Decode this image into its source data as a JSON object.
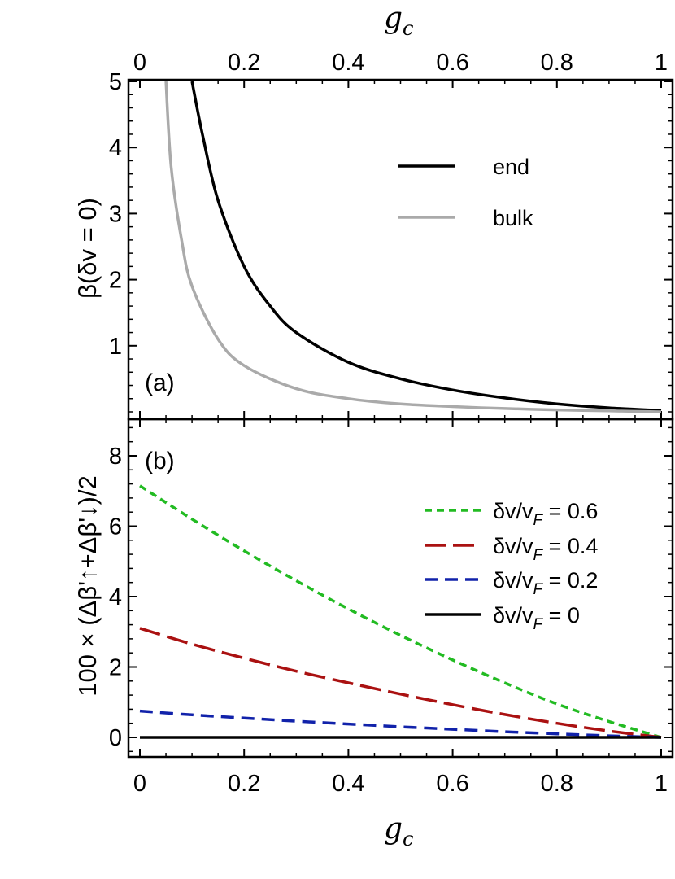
{
  "chart_data": [
    {
      "panel": "(a)",
      "type": "line",
      "xlabel_top": {
        "main": "g",
        "sub": "c"
      },
      "ylabel": "β(δv = 0)",
      "xlim": [
        0,
        1
      ],
      "ylim": [
        0,
        5
      ],
      "xticks": [
        "0",
        "0.2",
        "0.4",
        "0.6",
        "0.8",
        "1"
      ],
      "yticks": [
        "1",
        "2",
        "3",
        "4",
        "5"
      ],
      "legend_position": "top-right",
      "series": [
        {
          "name": "end",
          "color": "#000000",
          "dash": "solid",
          "x": [
            0.1,
            0.12,
            0.15,
            0.2,
            0.25,
            0.3,
            0.4,
            0.5,
            0.6,
            0.7,
            0.8,
            0.9,
            1.0
          ],
          "y": [
            5.0,
            4.2,
            3.2,
            2.2,
            1.6,
            1.2,
            0.75,
            0.5,
            0.33,
            0.21,
            0.12,
            0.06,
            0.02
          ]
        },
        {
          "name": "bulk",
          "color": "#aaaaaa",
          "dash": "solid",
          "x": [
            0.05,
            0.06,
            0.08,
            0.1,
            0.15,
            0.2,
            0.3,
            0.4,
            0.5,
            0.6,
            0.7,
            0.8,
            0.9,
            1.0
          ],
          "y": [
            5.0,
            3.7,
            2.6,
            1.9,
            1.1,
            0.7,
            0.35,
            0.2,
            0.12,
            0.08,
            0.05,
            0.03,
            0.015,
            0.0
          ]
        }
      ]
    },
    {
      "panel": "(b)",
      "type": "line",
      "xlabel": {
        "main": "g",
        "sub": "c"
      },
      "ylabel": "100 × (Δβ'↑+Δβ'↓)/2",
      "xlim": [
        0,
        1
      ],
      "ylim": [
        -0.5,
        9
      ],
      "xticks": [
        "0",
        "0.2",
        "0.4",
        "0.6",
        "0.8",
        "1"
      ],
      "yticks": [
        "0",
        "2",
        "4",
        "6",
        "8"
      ],
      "legend_position": "top-right",
      "series": [
        {
          "name": "δv/vF = 0.6",
          "label_main": "δv/v",
          "label_sub": "F",
          "label_value": " = 0.6",
          "color": "#22bb22",
          "dash": "short-dash",
          "x": [
            0,
            0.1,
            0.2,
            0.3,
            0.4,
            0.5,
            0.6,
            0.7,
            0.8,
            0.9,
            1.0
          ],
          "y": [
            7.15,
            6.2,
            5.3,
            4.45,
            3.65,
            2.9,
            2.2,
            1.55,
            0.95,
            0.45,
            0.0
          ]
        },
        {
          "name": "δv/vF = 0.4",
          "label_main": "δv/v",
          "label_sub": "F",
          "label_value": " = 0.4",
          "color": "#aa1111",
          "dash": "long-dash",
          "x": [
            0,
            0.1,
            0.2,
            0.3,
            0.4,
            0.5,
            0.6,
            0.7,
            0.8,
            0.9,
            1.0
          ],
          "y": [
            3.1,
            2.65,
            2.25,
            1.88,
            1.55,
            1.23,
            0.93,
            0.65,
            0.4,
            0.18,
            0.0
          ]
        },
        {
          "name": "δv/vF = 0.2",
          "label_main": "δv/v",
          "label_sub": "F",
          "label_value": " = 0.2",
          "color": "#1122aa",
          "dash": "medium-dash",
          "x": [
            0,
            0.1,
            0.2,
            0.3,
            0.4,
            0.5,
            0.6,
            0.7,
            0.8,
            0.9,
            1.0
          ],
          "y": [
            0.75,
            0.64,
            0.55,
            0.46,
            0.38,
            0.3,
            0.23,
            0.16,
            0.1,
            0.045,
            0.0
          ]
        },
        {
          "name": "δv/vF = 0",
          "label_main": "δv/v",
          "label_sub": "F",
          "label_value": " = 0",
          "color": "#000000",
          "dash": "solid",
          "x": [
            0,
            1.0
          ],
          "y": [
            0,
            0
          ]
        }
      ]
    }
  ]
}
